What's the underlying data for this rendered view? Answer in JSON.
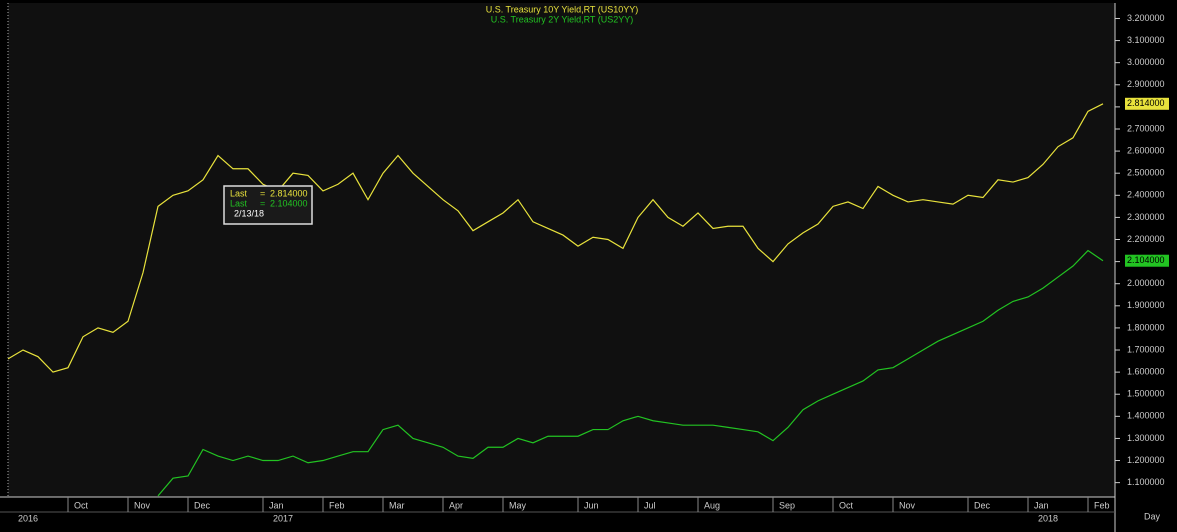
{
  "chart_data": {
    "type": "line",
    "categories": [
      null,
      null,
      null,
      null,
      "Oct",
      null,
      null,
      null,
      "Nov",
      null,
      null,
      null,
      "Dec",
      null,
      null,
      null,
      null,
      "Jan",
      null,
      null,
      null,
      "Feb",
      null,
      null,
      null,
      "Mar",
      null,
      null,
      null,
      "Apr",
      null,
      null,
      null,
      "May",
      null,
      null,
      null,
      null,
      "Jun",
      null,
      null,
      null,
      "Jul",
      null,
      null,
      null,
      "Aug",
      null,
      null,
      null,
      null,
      "Sep",
      null,
      null,
      null,
      "Oct",
      null,
      null,
      null,
      "Nov",
      null,
      null,
      null,
      null,
      "Dec",
      null,
      null,
      null,
      "Jan",
      null,
      null,
      null,
      "Feb",
      null
    ],
    "category_years": [
      "2016",
      null,
      null,
      null,
      null,
      null,
      null,
      null,
      null,
      null,
      null,
      null,
      null,
      null,
      null,
      null,
      null,
      "2017",
      null,
      null,
      null,
      null,
      null,
      null,
      null,
      null,
      null,
      null,
      null,
      null,
      null,
      null,
      null,
      null,
      null,
      null,
      null,
      null,
      null,
      null,
      null,
      null,
      null,
      null,
      null,
      null,
      null,
      null,
      null,
      null,
      null,
      null,
      null,
      null,
      null,
      null,
      null,
      null,
      null,
      null,
      null,
      null,
      null,
      null,
      null,
      null,
      null,
      null,
      "2018",
      null,
      null,
      null,
      null,
      null
    ],
    "x_unit_label": "Day",
    "series": [
      {
        "name": "U.S.  Treasury  10Y  Yield,RT  (US10YY)",
        "color": "#e8e23c",
        "values": [
          1.66,
          1.7,
          1.67,
          1.6,
          1.62,
          1.76,
          1.8,
          1.78,
          1.83,
          2.05,
          2.35,
          2.4,
          2.42,
          2.47,
          2.58,
          2.52,
          2.52,
          2.45,
          2.42,
          2.5,
          2.49,
          2.42,
          2.45,
          2.5,
          2.38,
          2.5,
          2.58,
          2.5,
          2.44,
          2.38,
          2.33,
          2.24,
          2.28,
          2.32,
          2.38,
          2.28,
          2.25,
          2.22,
          2.17,
          2.21,
          2.2,
          2.16,
          2.3,
          2.38,
          2.3,
          2.26,
          2.32,
          2.25,
          2.26,
          2.26,
          2.16,
          2.1,
          2.18,
          2.23,
          2.27,
          2.35,
          2.37,
          2.34,
          2.44,
          2.4,
          2.37,
          2.38,
          2.37,
          2.36,
          2.4,
          2.39,
          2.47,
          2.46,
          2.48,
          2.54,
          2.62,
          2.66,
          2.78,
          2.814
        ],
        "value_labels": [
          null,
          null,
          null,
          null,
          null,
          null,
          null,
          null,
          null,
          null,
          null,
          null,
          null,
          null,
          null,
          null,
          null,
          null,
          null,
          null,
          null,
          null,
          null,
          null,
          null,
          null,
          null,
          null,
          null,
          null,
          null,
          null,
          null,
          null,
          null,
          null,
          null,
          null,
          null,
          null,
          null,
          null,
          null,
          null,
          null,
          null,
          null,
          null,
          null,
          null,
          null,
          null,
          null,
          null,
          null,
          null,
          null,
          null,
          null,
          null,
          null,
          null,
          null,
          null,
          null,
          null,
          null,
          null,
          null,
          null,
          null,
          null,
          null,
          "2.814000"
        ]
      },
      {
        "name": "U.S.  Treasury  2Y  Yield,RT  (US2YY)",
        "color": "#22c322",
        "values": [
          null,
          null,
          null,
          null,
          null,
          null,
          null,
          null,
          null,
          null,
          1.04,
          1.12,
          1.13,
          1.25,
          1.22,
          1.2,
          1.22,
          1.2,
          1.2,
          1.22,
          1.19,
          1.2,
          1.22,
          1.24,
          1.24,
          1.34,
          1.36,
          1.3,
          1.28,
          1.26,
          1.22,
          1.21,
          1.26,
          1.26,
          1.3,
          1.28,
          1.31,
          1.31,
          1.31,
          1.34,
          1.34,
          1.38,
          1.4,
          1.38,
          1.37,
          1.36,
          1.36,
          1.36,
          1.35,
          1.34,
          1.33,
          1.29,
          1.35,
          1.43,
          1.47,
          1.5,
          1.53,
          1.56,
          1.61,
          1.62,
          1.66,
          1.7,
          1.74,
          1.77,
          1.8,
          1.83,
          1.88,
          1.92,
          1.94,
          1.98,
          2.03,
          2.08,
          2.15,
          2.104
        ],
        "value_labels": [
          null,
          null,
          null,
          null,
          null,
          null,
          null,
          null,
          null,
          null,
          null,
          null,
          null,
          null,
          null,
          null,
          null,
          null,
          null,
          null,
          null,
          null,
          null,
          null,
          null,
          null,
          null,
          null,
          null,
          null,
          null,
          null,
          null,
          null,
          null,
          null,
          null,
          null,
          null,
          null,
          null,
          null,
          null,
          null,
          null,
          null,
          null,
          null,
          null,
          null,
          null,
          null,
          null,
          null,
          null,
          null,
          null,
          null,
          null,
          null,
          null,
          null,
          null,
          null,
          null,
          null,
          null,
          null,
          null,
          null,
          null,
          null,
          null,
          "2.104000"
        ]
      }
    ],
    "tooltip": {
      "rows": [
        {
          "label": "Last",
          "sep": "=",
          "value": "2.814000"
        },
        {
          "label": "Last",
          "sep": "=",
          "value": "2.104000"
        }
      ],
      "date": "2/13/18"
    },
    "ylim": [
      1.035,
      3.27
    ],
    "yticks": [
      {
        "value": 1.1,
        "label": "1.100000"
      },
      {
        "value": 1.2,
        "label": "1.200000"
      },
      {
        "value": 1.3,
        "label": "1.300000"
      },
      {
        "value": 1.4,
        "label": "1.400000"
      },
      {
        "value": 1.5,
        "label": "1.500000"
      },
      {
        "value": 1.6,
        "label": "1.600000"
      },
      {
        "value": 1.7,
        "label": "1.700000"
      },
      {
        "value": 1.8,
        "label": "1.800000"
      },
      {
        "value": 1.9,
        "label": "1.900000"
      },
      {
        "value": 2.0,
        "label": "2.000000"
      },
      {
        "value": 2.1,
        "label": "2.100000"
      },
      {
        "value": 2.2,
        "label": "2.200000"
      },
      {
        "value": 2.3,
        "label": "2.300000"
      },
      {
        "value": 2.4,
        "label": "2.400000"
      },
      {
        "value": 2.5,
        "label": "2.500000"
      },
      {
        "value": 2.6,
        "label": "2.600000"
      },
      {
        "value": 2.7,
        "label": "2.700000"
      },
      {
        "value": 2.8,
        "label": "2.800000"
      },
      {
        "value": 2.9,
        "label": "2.900000"
      },
      {
        "value": 3.0,
        "label": "3.000000"
      },
      {
        "value": 3.1,
        "label": "3.100000"
      },
      {
        "value": 3.2,
        "label": "3.200000"
      }
    ],
    "grid": false
  }
}
